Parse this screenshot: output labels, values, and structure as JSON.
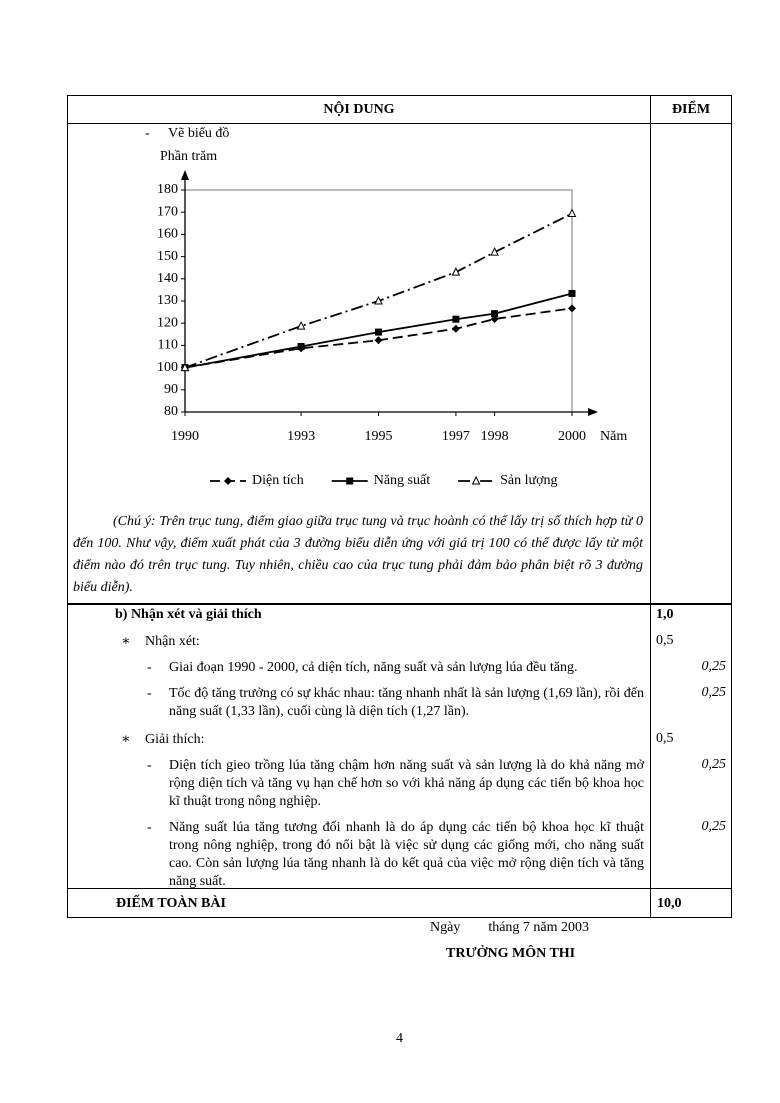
{
  "header": {
    "content": "NỘI DUNG",
    "score": "ĐIỂM"
  },
  "draw_item": {
    "bullet": "-",
    "text": "Vẽ biểu đồ"
  },
  "chart_data": {
    "type": "line",
    "y_label": "Phần trăm",
    "x_label": "Năm",
    "x": [
      1990,
      1993,
      1995,
      1997,
      1998,
      2000
    ],
    "xlim": [
      1990,
      2000
    ],
    "xticks": [
      1990,
      1993,
      1995,
      1997,
      1998,
      2000
    ],
    "ylim": [
      80,
      180
    ],
    "yticks": [
      80,
      90,
      100,
      110,
      120,
      130,
      140,
      150,
      160,
      170,
      180
    ],
    "grid": false,
    "legend": "bottom",
    "series": [
      {
        "name": "Diện tích",
        "color": "#000000",
        "line": "dashed",
        "marker": "diamond",
        "values": [
          100,
          108.7,
          112.3,
          117.5,
          121.9,
          126.7
        ]
      },
      {
        "name": "Năng suất",
        "color": "#000000",
        "line": "solid",
        "marker": "square",
        "values": [
          100,
          109.5,
          116,
          121.8,
          124.3,
          133.4
        ]
      },
      {
        "name": "Sản lượng",
        "color": "#000000",
        "line": "dashdot",
        "marker": "triangle",
        "values": [
          100,
          118.7,
          130,
          143,
          152,
          169.4
        ]
      }
    ]
  },
  "note": "(Chú ý: Trên trục tung, điểm giao giữa trục tung và trục hoành có thể lấy trị số thích hợp từ 0 đến 100. Như vậy, điểm xuất phát của 3 đường biểu diễn ứng với giá trị 100 có thể được lấy từ một điểm nào đó trên trục tung. Tuy nhiên, chiều cao của trục tung phải đảm bảo phân biệt rõ 3 đường biểu diễn).",
  "section_b": {
    "title": "b) Nhận xét và giải thích",
    "score": "1,0",
    "groups": [
      {
        "bullet": "∗",
        "title": "Nhận xét:",
        "score": "0,5",
        "items": [
          {
            "bullet": "-",
            "text": "Giai đoạn 1990 - 2000, cả diện tích, năng suất và sản lượng lúa đều tăng.",
            "score": "0,25"
          },
          {
            "bullet": "-",
            "text": "Tốc độ tăng trưởng có sự khác nhau: tăng nhanh nhất là sản lượng (1,69 lần), rồi đến năng suất (1,33 lần), cuối cùng là diện tích (1,27 lần).",
            "score": "0,25"
          }
        ]
      },
      {
        "bullet": "∗",
        "title": "Giải thích:",
        "score": "0,5",
        "items": [
          {
            "bullet": "-",
            "text": "Diện tích gieo trồng lúa tăng chậm hơn năng suất và sản lượng là do khả năng mở rộng diện tích và tăng vụ hạn chế hơn so với khả năng áp dụng các tiến bộ khoa học kĩ thuật trong nông nghiệp.",
            "score": "0,25"
          },
          {
            "bullet": "-",
            "text": "Năng suất lúa tăng tương đối nhanh là do áp dụng các tiến bộ khoa học kĩ thuật trong nông nghiệp, trong đó nổi bật là việc sử dụng các giống mới, cho năng suất cao. Còn sản lượng lúa tăng nhanh là do kết quả của việc mở rộng diện tích và tăng năng suất.",
            "score": "0,25"
          }
        ]
      }
    ]
  },
  "total": {
    "label": "ĐIỂM TOÀN BÀI",
    "score": "10,0"
  },
  "footer": {
    "date": "Ngày        tháng 7 năm 2003",
    "signature": "TRƯỞNG MÔN THI",
    "page": "4"
  }
}
